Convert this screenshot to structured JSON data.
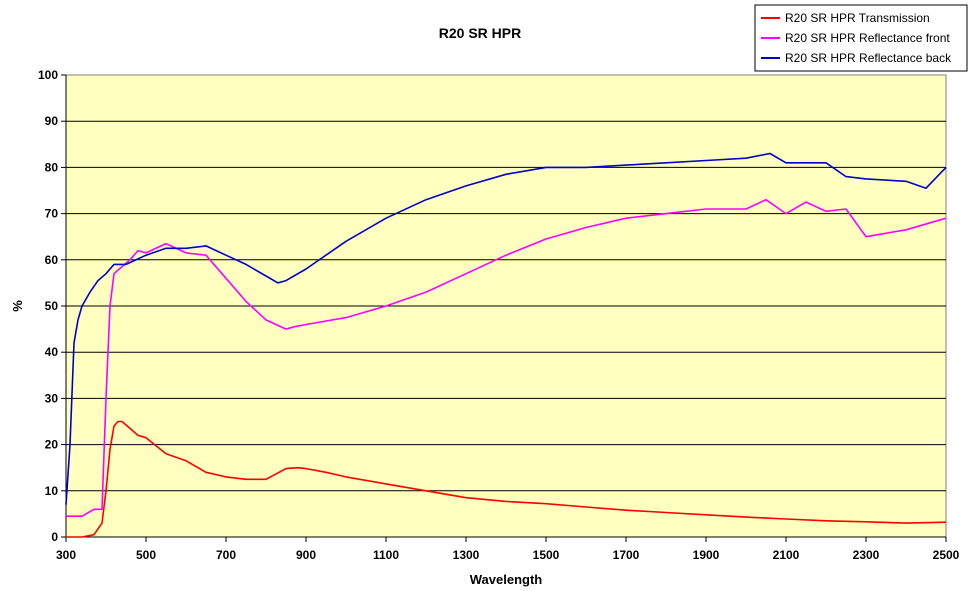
{
  "chart_data": {
    "type": "line",
    "title": "R20 SR HPR",
    "xlabel": "Wavelength",
    "ylabel": "%",
    "xlim": [
      300,
      2500
    ],
    "ylim": [
      0,
      100
    ],
    "x_ticks": [
      300,
      500,
      700,
      900,
      1100,
      1300,
      1500,
      1700,
      1900,
      2100,
      2300,
      2500
    ],
    "y_ticks": [
      0,
      10,
      20,
      30,
      40,
      50,
      60,
      70,
      80,
      90,
      100
    ],
    "grid": "horizontal",
    "legend_position": "top-right",
    "plot_background": "#FFFFC0",
    "series": [
      {
        "name": "R20 SR HPR Transmission",
        "color": "#FF0000",
        "x": [
          300,
          340,
          370,
          390,
          400,
          410,
          420,
          430,
          440,
          460,
          480,
          500,
          550,
          600,
          650,
          700,
          750,
          800,
          850,
          880,
          900,
          950,
          1000,
          1100,
          1200,
          1300,
          1400,
          1500,
          1600,
          1700,
          1800,
          1900,
          2000,
          2100,
          2200,
          2300,
          2400,
          2500
        ],
        "y": [
          0,
          0,
          0.5,
          3,
          10,
          19,
          24,
          25,
          25,
          23.5,
          22,
          21.5,
          18,
          16.5,
          14,
          13,
          12.5,
          12.5,
          14.8,
          15,
          14.8,
          14,
          13,
          11.5,
          10,
          8.5,
          7.7,
          7.2,
          6.5,
          5.8,
          5.3,
          4.8,
          4.3,
          3.9,
          3.5,
          3.3,
          3.0,
          3.2
        ]
      },
      {
        "name": "R20 SR HPR Reflectance front",
        "color": "#FF00FF",
        "x": [
          300,
          340,
          370,
          390,
          400,
          410,
          420,
          440,
          460,
          480,
          500,
          550,
          600,
          650,
          700,
          750,
          800,
          850,
          870,
          900,
          1000,
          1100,
          1200,
          1300,
          1400,
          1500,
          1600,
          1700,
          1800,
          1900,
          2000,
          2050,
          2100,
          2150,
          2200,
          2250,
          2300,
          2400,
          2500
        ],
        "y": [
          4.5,
          4.5,
          6,
          6,
          30,
          50,
          57,
          58.5,
          60,
          62,
          61.5,
          63.5,
          61.5,
          61,
          56,
          51,
          47,
          45,
          45.5,
          46,
          47.5,
          50,
          53,
          57,
          61,
          64.5,
          67,
          69,
          70,
          71,
          71,
          73,
          70,
          72.5,
          70.5,
          71,
          65,
          66.5,
          69
        ]
      },
      {
        "name": "R20 SR HPR Reflectance back",
        "color": "#0000CC",
        "x": [
          300,
          310,
          320,
          330,
          340,
          360,
          380,
          400,
          420,
          450,
          500,
          550,
          600,
          650,
          700,
          750,
          800,
          830,
          850,
          900,
          1000,
          1100,
          1200,
          1300,
          1400,
          1500,
          1600,
          1700,
          1800,
          1900,
          2000,
          2060,
          2100,
          2200,
          2250,
          2300,
          2400,
          2450,
          2500
        ],
        "y": [
          7,
          20,
          42,
          47,
          50,
          53,
          55.5,
          57,
          59,
          59,
          61,
          62.5,
          62.5,
          63,
          61,
          59,
          56.5,
          55,
          55.5,
          58,
          64,
          69,
          73,
          76,
          78.5,
          80,
          80,
          80.5,
          81,
          81.5,
          82,
          83,
          81,
          81,
          78,
          77.5,
          77,
          75.5,
          80
        ]
      }
    ]
  }
}
